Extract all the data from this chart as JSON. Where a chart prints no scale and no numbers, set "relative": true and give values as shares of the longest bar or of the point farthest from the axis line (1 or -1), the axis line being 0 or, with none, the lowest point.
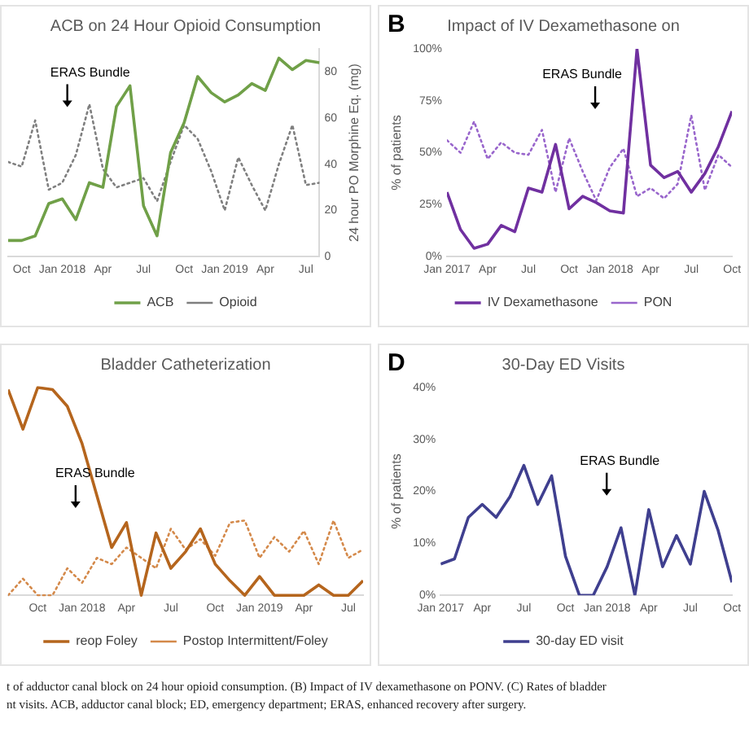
{
  "chart_data": [
    {
      "type": "line",
      "title": "ACB on 24 Hour Opioid Consumption",
      "y2label": "24 hour PO Morphine Eq. (mg)",
      "legend": "bottom",
      "grid": false,
      "marker": "none",
      "line_style": "solid",
      "x": [
        "2017-09",
        "2017-10",
        "2017-11",
        "2017-12",
        "2018-01",
        "2018-02",
        "2018-03",
        "2018-04",
        "2018-05",
        "2018-06",
        "2018-07",
        "2018-08",
        "2018-09",
        "2018-10",
        "2018-11",
        "2018-12",
        "2019-01",
        "2019-02",
        "2019-03",
        "2019-04",
        "2019-05",
        "2019-06",
        "2019-07",
        "2019-08"
      ],
      "series": [
        {
          "name": "ACB",
          "color": "#70a048",
          "axis": "y2",
          "values": [
            7,
            7,
            9,
            23,
            25,
            16,
            32,
            30,
            65,
            74,
            22,
            9,
            45,
            58,
            78,
            71,
            67,
            70,
            75,
            72,
            86,
            81,
            85,
            84
          ]
        },
        {
          "name": "Opioid",
          "color": "#7f7f7f",
          "axis": "y2",
          "line_style": "dotted",
          "values": [
            41,
            39,
            59,
            29,
            32,
            44,
            66,
            38,
            30,
            32,
            34,
            24,
            41,
            57,
            51,
            37,
            20,
            43,
            31,
            20,
            40,
            57,
            31,
            32
          ]
        }
      ],
      "xlim": [
        "2017-09",
        "2019-08"
      ],
      "xticks": [
        {
          "value": "2017-10",
          "label": "Oct"
        },
        {
          "value": "2018-01",
          "label": "Jan 2018"
        },
        {
          "value": "2018-04",
          "label": "Apr"
        },
        {
          "value": "2018-07",
          "label": "Jul"
        },
        {
          "value": "2018-10",
          "label": "Oct"
        },
        {
          "value": "2019-01",
          "label": "Jan 2019"
        },
        {
          "value": "2019-04",
          "label": "Apr"
        },
        {
          "value": "2019-07",
          "label": "Jul"
        }
      ],
      "y2lim": [
        0,
        90
      ],
      "y2ticks": [
        0,
        20,
        40,
        60,
        80
      ],
      "annotations": [
        "ERAS Bundle"
      ]
    },
    {
      "type": "line",
      "title": "Impact of IV Dexamethasone on",
      "ylabel": "% of patients",
      "legend": "bottom",
      "grid": false,
      "marker": "none",
      "line_style": "solid",
      "x": [
        "2017-01",
        "2017-02",
        "2017-03",
        "2017-04",
        "2017-05",
        "2017-06",
        "2017-07",
        "2017-08",
        "2017-09",
        "2017-10",
        "2017-11",
        "2017-12",
        "2018-01",
        "2018-02",
        "2018-03",
        "2018-04",
        "2018-05",
        "2018-06",
        "2018-07",
        "2018-08",
        "2018-09",
        "2018-10"
      ],
      "series": [
        {
          "name": "IV Dexamethasone",
          "color": "#7030a0",
          "values": [
            31,
            13,
            4,
            6,
            15,
            12,
            33,
            31,
            54,
            23,
            29,
            26,
            22,
            21,
            100,
            44,
            38,
            41,
            31,
            40,
            53,
            70
          ]
        },
        {
          "name": "PON",
          "color": "#9966cc",
          "line_style": "dotted",
          "values": [
            56,
            50,
            65,
            47,
            55,
            50,
            49,
            61,
            31,
            57,
            41,
            27,
            43,
            52,
            29,
            33,
            28,
            35,
            68,
            32,
            49,
            43
          ]
        }
      ],
      "xlim": [
        "2017-01",
        "2018-10"
      ],
      "xticks": [
        {
          "value": "2017-01",
          "label": "Jan 2017"
        },
        {
          "value": "2017-04",
          "label": "Apr"
        },
        {
          "value": "2017-07",
          "label": "Jul"
        },
        {
          "value": "2017-10",
          "label": "Oct"
        },
        {
          "value": "2018-01",
          "label": "Jan 2018"
        },
        {
          "value": "2018-04",
          "label": "Apr"
        },
        {
          "value": "2018-07",
          "label": "Jul"
        },
        {
          "value": "2018-10",
          "label": "Oct"
        }
      ],
      "ylim": [
        0,
        100
      ],
      "yticks": [
        {
          "value": 0,
          "label": "0%"
        },
        {
          "value": 25,
          "label": "25%"
        },
        {
          "value": 50,
          "label": "50%"
        },
        {
          "value": 75,
          "label": "75%"
        },
        {
          "value": 100,
          "label": "100%"
        }
      ],
      "annotations": [
        "B",
        "ERAS Bundle"
      ]
    },
    {
      "type": "line",
      "title": "Bladder Catheterization",
      "relative": true,
      "legend": "bottom",
      "grid": false,
      "marker": "none",
      "line_style": "solid",
      "x": [
        "2017-08",
        "2017-09",
        "2017-10",
        "2017-11",
        "2017-12",
        "2018-01",
        "2018-02",
        "2018-03",
        "2018-04",
        "2018-05",
        "2018-06",
        "2018-07",
        "2018-08",
        "2018-09",
        "2018-10",
        "2018-11",
        "2018-12",
        "2019-01",
        "2019-02",
        "2019-03",
        "2019-04",
        "2019-05",
        "2019-06",
        "2019-07",
        "2019-08"
      ],
      "series": [
        {
          "name": "reop Foley",
          "color": "#b5651d",
          "values": [
            0.99,
            0.8,
            1,
            0.99,
            0.91,
            0.73,
            0.48,
            0.23,
            0.35,
            0,
            0.3,
            0.13,
            0.21,
            0.32,
            0.15,
            0.07,
            0,
            0.09,
            0,
            0,
            0,
            0.05,
            0,
            0,
            0.07
          ]
        },
        {
          "name": "Postop Intermittent/Foley",
          "color": "#d4894a",
          "line_style": "dotted",
          "values": [
            0,
            0.08,
            0,
            0,
            0.13,
            0.06,
            0.18,
            0.15,
            0.23,
            0.18,
            0.13,
            0.32,
            0.22,
            0.27,
            0.19,
            0.35,
            0.36,
            0.18,
            0.28,
            0.21,
            0.31,
            0.15,
            0.36,
            0.18,
            0.22
          ]
        }
      ],
      "xlim": [
        "2017-08",
        "2019-08"
      ],
      "xticks": [
        {
          "value": "2017-10",
          "label": "Oct"
        },
        {
          "value": "2018-01",
          "label": "Jan 2018"
        },
        {
          "value": "2018-04",
          "label": "Apr"
        },
        {
          "value": "2018-07",
          "label": "Jul"
        },
        {
          "value": "2018-10",
          "label": "Oct"
        },
        {
          "value": "2019-01",
          "label": "Jan 2019"
        },
        {
          "value": "2019-04",
          "label": "Apr"
        },
        {
          "value": "2019-07",
          "label": "Jul"
        }
      ],
      "annotations": [
        "ERAS Bundle"
      ]
    },
    {
      "type": "line",
      "title": "30-Day ED Visits",
      "ylabel": "% of patients",
      "legend": "bottom",
      "grid": false,
      "marker": "none",
      "line_style": "solid",
      "x": [
        "2017-01",
        "2017-02",
        "2017-03",
        "2017-04",
        "2017-05",
        "2017-06",
        "2017-07",
        "2017-08",
        "2017-09",
        "2017-10",
        "2017-11",
        "2017-12",
        "2018-01",
        "2018-02",
        "2018-03",
        "2018-04",
        "2018-05",
        "2018-06",
        "2018-07",
        "2018-08",
        "2018-09",
        "2018-10"
      ],
      "series": [
        {
          "name": "30-day ED visit",
          "color": "#3f3f8f",
          "values": [
            6,
            7,
            15,
            17.5,
            15,
            19,
            25,
            17.5,
            23,
            7.5,
            0,
            0,
            5.5,
            13,
            0,
            16.5,
            5.5,
            11.5,
            6,
            20,
            12.5,
            2.5
          ]
        }
      ],
      "xlim": [
        "2017-01",
        "2018-10"
      ],
      "xticks": [
        {
          "value": "2017-01",
          "label": "Jan 2017"
        },
        {
          "value": "2017-04",
          "label": "Apr"
        },
        {
          "value": "2017-07",
          "label": "Jul"
        },
        {
          "value": "2017-10",
          "label": "Oct"
        },
        {
          "value": "2018-01",
          "label": "Jan 2018"
        },
        {
          "value": "2018-04",
          "label": "Apr"
        },
        {
          "value": "2018-07",
          "label": "Jul"
        },
        {
          "value": "2018-10",
          "label": "Oct"
        }
      ],
      "ylim": [
        0,
        40
      ],
      "yticks": [
        {
          "value": 0,
          "label": "0%"
        },
        {
          "value": 10,
          "label": "10%"
        },
        {
          "value": 20,
          "label": "20%"
        },
        {
          "value": 30,
          "label": "30%"
        },
        {
          "value": 40,
          "label": "40%"
        }
      ],
      "annotations": [
        "D",
        "ERAS Bundle"
      ]
    },
    {
      "type": "other",
      "annotations": [
        "t of adductor canal block on 24 hour opioid consumption. (B) Impact of IV dexamethasone on PONV. (C) Rates of bladder",
        "nt visits. ACB, adductor canal block; ED, emergency department; ERAS, enhanced recovery after surgery."
      ]
    }
  ]
}
